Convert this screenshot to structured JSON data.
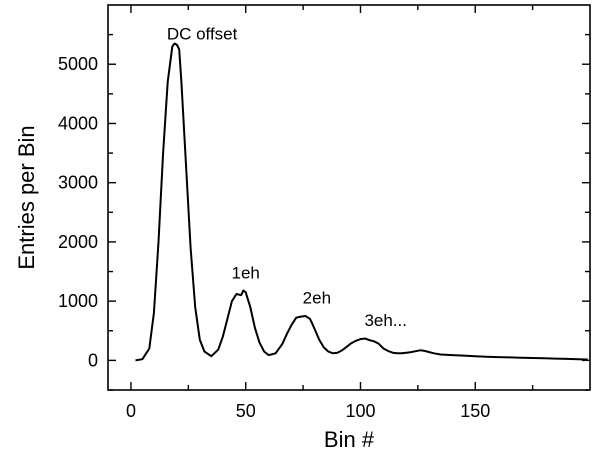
{
  "chart_data": {
    "type": "line",
    "title": "",
    "xlabel": "Bin #",
    "ylabel": "Entries per Bin",
    "xlim": [
      -10,
      200
    ],
    "ylim": [
      -500,
      6000
    ],
    "xticks": [
      0,
      50,
      100,
      150
    ],
    "yticks": [
      0,
      1000,
      2000,
      3000,
      4000,
      5000
    ],
    "grid": false,
    "colors": {
      "line": "#000000",
      "axis": "#000000"
    },
    "series": [
      {
        "x": [
          2,
          5,
          8,
          10,
          12,
          14,
          16,
          18,
          19,
          20,
          21,
          22,
          24,
          26,
          28,
          30,
          32,
          35,
          38,
          40,
          42,
          44,
          46,
          48,
          49,
          50,
          52,
          54,
          56,
          58,
          60,
          63,
          66,
          68,
          70,
          72,
          74,
          76,
          78,
          79,
          80,
          82,
          84,
          86,
          88,
          90,
          92,
          94,
          96,
          98,
          100,
          102,
          104,
          106,
          108,
          110,
          112,
          114,
          116,
          118,
          120,
          122,
          124,
          126,
          128,
          130,
          132,
          135,
          140,
          145,
          150,
          155,
          160,
          165,
          170,
          175,
          180,
          185,
          190,
          195,
          199
        ],
        "y": [
          0,
          20,
          200,
          800,
          2000,
          3500,
          4700,
          5300,
          5350,
          5330,
          5250,
          4700,
          3300,
          1900,
          900,
          350,
          150,
          70,
          180,
          400,
          700,
          1000,
          1120,
          1100,
          1180,
          1150,
          900,
          550,
          300,
          150,
          90,
          120,
          280,
          450,
          600,
          720,
          740,
          750,
          700,
          620,
          530,
          350,
          220,
          150,
          120,
          130,
          170,
          230,
          290,
          330,
          360,
          370,
          340,
          320,
          280,
          200,
          160,
          130,
          120,
          120,
          130,
          140,
          155,
          170,
          160,
          140,
          120,
          100,
          90,
          80,
          70,
          60,
          55,
          50,
          45,
          40,
          35,
          30,
          25,
          20,
          15
        ]
      }
    ],
    "annotations": [
      {
        "text": "DC offset",
        "x": 31,
        "y": 5420
      },
      {
        "text": "1eh",
        "x": 50,
        "y": 1380
      },
      {
        "text": "2eh",
        "x": 81,
        "y": 960
      },
      {
        "text": "3eh...",
        "x": 111,
        "y": 580
      }
    ]
  }
}
